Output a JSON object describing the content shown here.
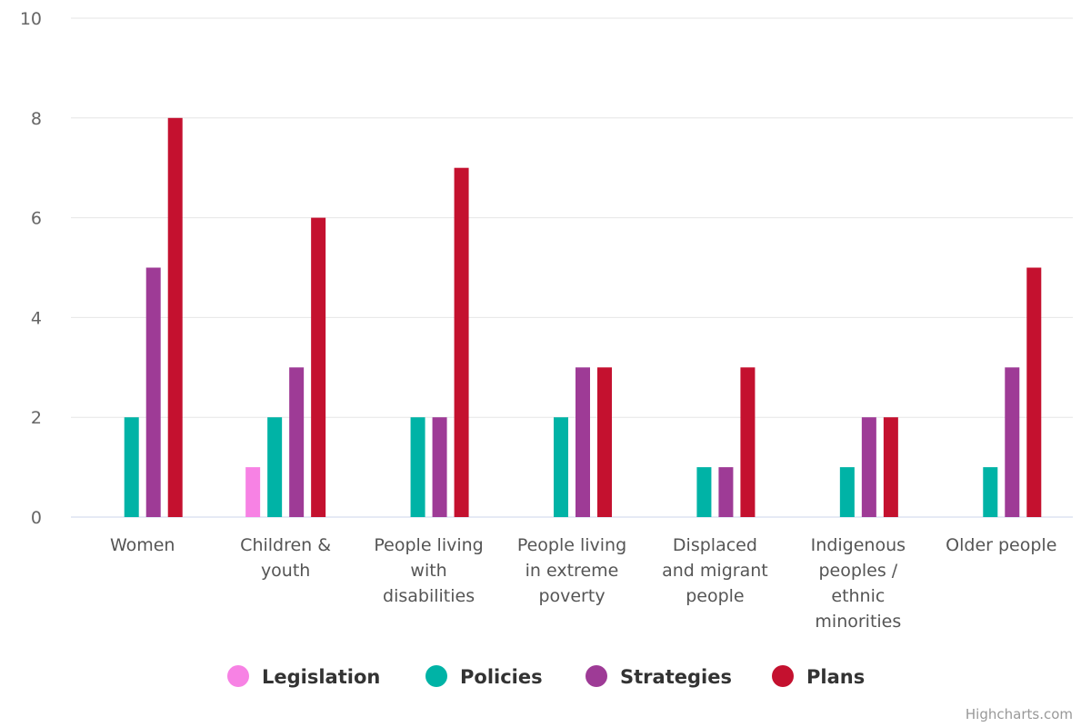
{
  "chart_data": {
    "type": "bar",
    "title": "",
    "xlabel": "",
    "ylabel": "",
    "ylim": [
      0,
      10
    ],
    "yticks": [
      0,
      2,
      4,
      6,
      8,
      10
    ],
    "grid": true,
    "legend_position": "bottom-center",
    "categories": [
      [
        "Women"
      ],
      [
        "Children &",
        "youth"
      ],
      [
        "People living",
        "with",
        "disabilities"
      ],
      [
        "People living",
        "in extreme",
        "poverty"
      ],
      [
        "Displaced",
        "and migrant",
        "people"
      ],
      [
        "Indigenous",
        "peoples /",
        "ethnic",
        "minorities"
      ],
      [
        "Older people"
      ]
    ],
    "series": [
      {
        "name": "Legislation",
        "color": "#f782e4",
        "values": [
          0,
          1,
          0,
          0,
          0,
          0,
          0
        ]
      },
      {
        "name": "Policies",
        "color": "#00b3a6",
        "values": [
          2,
          2,
          2,
          2,
          1,
          1,
          1
        ]
      },
      {
        "name": "Strategies",
        "color": "#9e3b96",
        "values": [
          5,
          3,
          2,
          3,
          1,
          2,
          3
        ]
      },
      {
        "name": "Plans",
        "color": "#c4112f",
        "values": [
          8,
          6,
          7,
          3,
          3,
          2,
          5
        ]
      }
    ]
  },
  "credits": "Highcharts.com"
}
